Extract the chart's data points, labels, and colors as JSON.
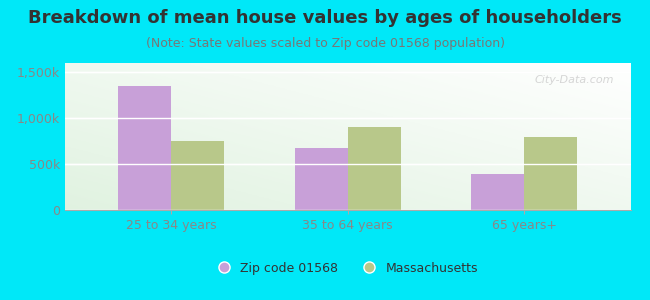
{
  "title": "Breakdown of mean house values by ages of householders",
  "subtitle": "(Note: State values scaled to Zip code 01568 population)",
  "categories": [
    "25 to 34 years",
    "35 to 64 years",
    "65 years+"
  ],
  "zip_values": [
    1350000,
    680000,
    390000
  ],
  "state_values": [
    750000,
    900000,
    800000
  ],
  "zip_color": "#c8a0d8",
  "state_color": "#b8c88a",
  "background_outer": "#00e8f8",
  "background_inner_top": "#f5fff5",
  "background_inner_bottom": "#d8ecd8",
  "ylim": [
    0,
    1600000
  ],
  "yticks": [
    0,
    500000,
    1000000,
    1500000
  ],
  "ytick_labels": [
    "0",
    "500k",
    "1,000k",
    "1,500k"
  ],
  "legend_zip": "Zip code 01568",
  "legend_state": "Massachusetts",
  "bar_width": 0.3,
  "title_fontsize": 13,
  "subtitle_fontsize": 9,
  "tick_fontsize": 9,
  "legend_fontsize": 9,
  "watermark": "City-Data.com"
}
